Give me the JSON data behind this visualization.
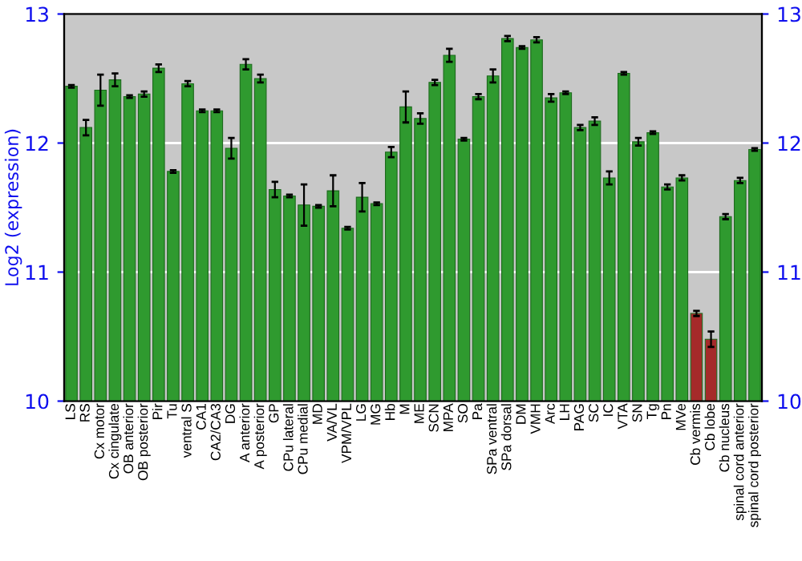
{
  "chart_data": {
    "type": "bar",
    "ylabel": "Log2 (expression)",
    "categories": [
      "LS",
      "RS",
      "Cx motor",
      "Cx cingulate",
      "OB anterior",
      "OB posterior",
      "Pir",
      "Tu",
      "ventral S",
      "CA1",
      "CA2/CA3",
      "DG",
      "A anterior",
      "A posterior",
      "GP",
      "CPu lateral",
      "CPu medial",
      "MD",
      "VA/VL",
      "VPM/VPL",
      "LG",
      "MG",
      "Hb",
      "M",
      "ME",
      "SCN",
      "MPA",
      "SO",
      "Pa",
      "SPa ventral",
      "SPa dorsal",
      "DM",
      "VMH",
      "Arc",
      "LH",
      "PAG",
      "SC",
      "IC",
      "VTA",
      "SN",
      "Tg",
      "Pn",
      "MVe",
      "Cb vermis",
      "Cb lobe",
      "Cb nucleus",
      "spinal cord anterior",
      "spinal cord posterior"
    ],
    "values": [
      12.44,
      12.12,
      12.41,
      12.49,
      12.36,
      12.38,
      12.58,
      11.78,
      12.46,
      12.25,
      12.25,
      11.96,
      12.61,
      12.5,
      11.64,
      11.59,
      11.52,
      11.51,
      11.63,
      11.34,
      11.58,
      11.53,
      11.93,
      12.28,
      12.19,
      12.47,
      12.68,
      12.03,
      12.36,
      12.52,
      12.81,
      12.74,
      12.8,
      12.35,
      12.39,
      12.12,
      12.17,
      11.73,
      12.54,
      12.01,
      12.08,
      11.66,
      11.73,
      10.68,
      10.48,
      11.43,
      11.71,
      11.95
    ],
    "errors": [
      0.01,
      0.06,
      0.12,
      0.05,
      0.01,
      0.02,
      0.03,
      0.01,
      0.02,
      0.01,
      0.01,
      0.08,
      0.04,
      0.03,
      0.06,
      0.01,
      0.16,
      0.01,
      0.12,
      0.01,
      0.11,
      0.01,
      0.04,
      0.12,
      0.04,
      0.02,
      0.05,
      0.01,
      0.02,
      0.05,
      0.02,
      0.01,
      0.02,
      0.03,
      0.01,
      0.02,
      0.03,
      0.05,
      0.01,
      0.03,
      0.01,
      0.02,
      0.02,
      0.02,
      0.06,
      0.02,
      0.02,
      0.01
    ],
    "colors": [
      "#2f9a2f",
      "#2f9a2f",
      "#2f9a2f",
      "#2f9a2f",
      "#2f9a2f",
      "#2f9a2f",
      "#2f9a2f",
      "#2f9a2f",
      "#2f9a2f",
      "#2f9a2f",
      "#2f9a2f",
      "#2f9a2f",
      "#2f9a2f",
      "#2f9a2f",
      "#2f9a2f",
      "#2f9a2f",
      "#2f9a2f",
      "#2f9a2f",
      "#2f9a2f",
      "#2f9a2f",
      "#2f9a2f",
      "#2f9a2f",
      "#2f9a2f",
      "#2f9a2f",
      "#2f9a2f",
      "#2f9a2f",
      "#2f9a2f",
      "#2f9a2f",
      "#2f9a2f",
      "#2f9a2f",
      "#2f9a2f",
      "#2f9a2f",
      "#2f9a2f",
      "#2f9a2f",
      "#2f9a2f",
      "#2f9a2f",
      "#2f9a2f",
      "#2f9a2f",
      "#2f9a2f",
      "#2f9a2f",
      "#2f9a2f",
      "#2f9a2f",
      "#2f9a2f",
      "#a52a2a",
      "#a52a2a",
      "#2f9a2f",
      "#2f9a2f",
      "#2f9a2f"
    ],
    "ylim": [
      10,
      13
    ],
    "yticks": [
      10,
      11,
      12,
      13
    ],
    "y2lim": [
      10,
      13
    ],
    "y2ticks": [
      10,
      11,
      12,
      13
    ],
    "grid": "y"
  }
}
